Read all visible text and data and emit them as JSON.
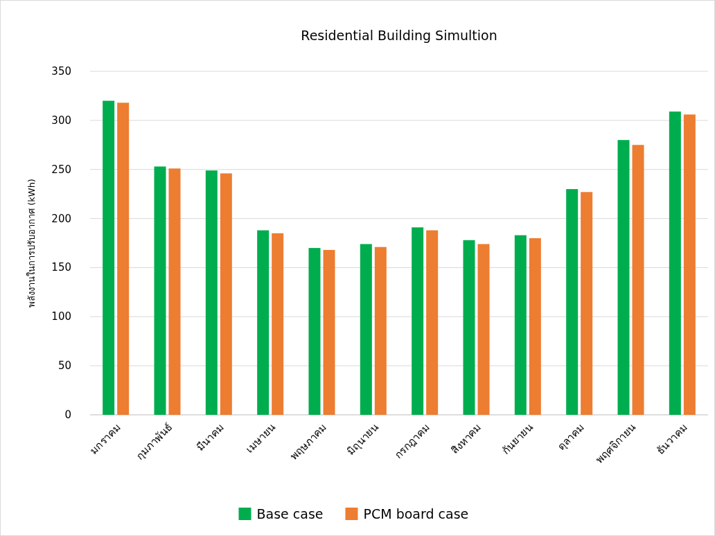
{
  "chart_data": {
    "type": "bar",
    "title": "Residential Building Simultion",
    "ylabel": "พลังงานในการปรับอากาศ (kWh)",
    "categories": [
      "มกราคม",
      "กุมภาพันธ์",
      "มีนาคม",
      "เมษายน",
      "พฤษภาคม",
      "มิถุนายน",
      "กรกฎาคม",
      "สิงหาคม",
      "กันยายน",
      "ตุลาคม",
      "พฤศจิกายน",
      "ธันวาคม"
    ],
    "series": [
      {
        "name": "Base case",
        "color": "#00ad4e",
        "values": [
          320,
          253,
          249,
          188,
          170,
          174,
          191,
          178,
          183,
          230,
          280,
          309
        ]
      },
      {
        "name": "PCM board case",
        "color": "#ed7d31",
        "values": [
          318,
          251,
          246,
          185,
          168,
          171,
          188,
          174,
          180,
          227,
          275,
          306
        ]
      }
    ],
    "ylim": [
      0,
      350
    ],
    "yticks": [
      0,
      50,
      100,
      150,
      200,
      250,
      300,
      350
    ],
    "grid": "y",
    "legend": "bottom"
  }
}
